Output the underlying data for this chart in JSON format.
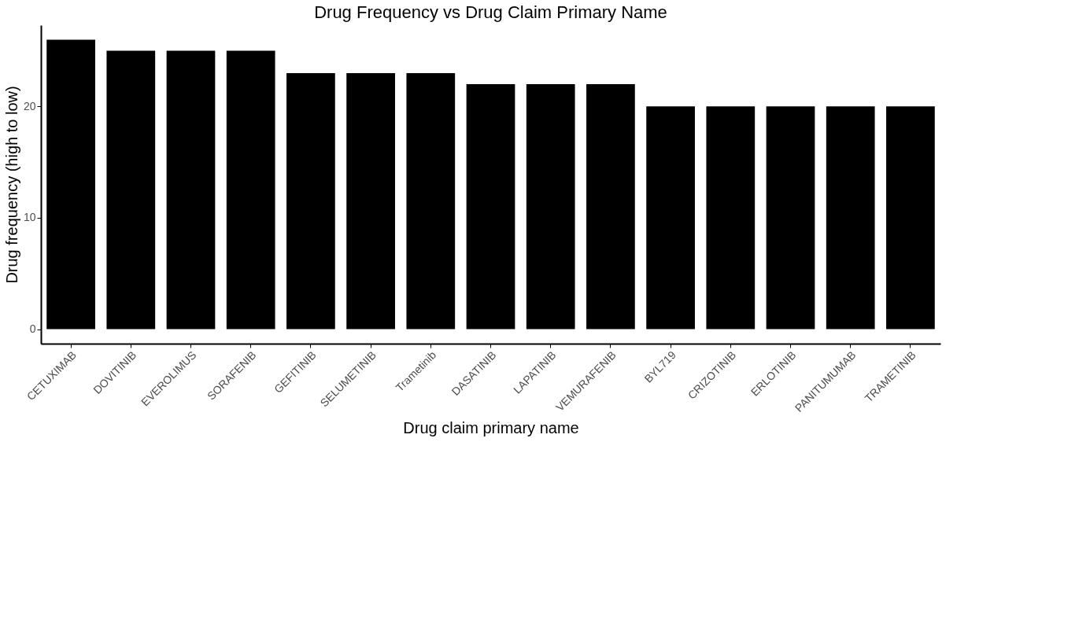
{
  "chart_data": {
    "type": "bar",
    "title": "Drug Frequency vs Drug Claim Primary Name",
    "xlabel": "Drug claim primary name",
    "ylabel": "Drug frequency (high to low)",
    "categories": [
      "CETUXIMAB",
      "DOVITINIB",
      "EVEROLIMUS",
      "SORAFENIB",
      "GEFITINIB",
      "SELUMETINIB",
      "Trametinib",
      "DASATINIB",
      "LAPATINIB",
      "VEMURAFENIB",
      "BYL719",
      "CRIZOTINIB",
      "ERLOTINIB",
      "PANITUMUMAB",
      "TRAMETINIB"
    ],
    "values": [
      26,
      25,
      25,
      25,
      23,
      23,
      23,
      22,
      22,
      22,
      20,
      20,
      20,
      20,
      20
    ],
    "color": "#000000",
    "ylim": [
      -1.3,
      27.3
    ],
    "yticks": [
      0,
      10,
      20
    ],
    "grid": false
  }
}
